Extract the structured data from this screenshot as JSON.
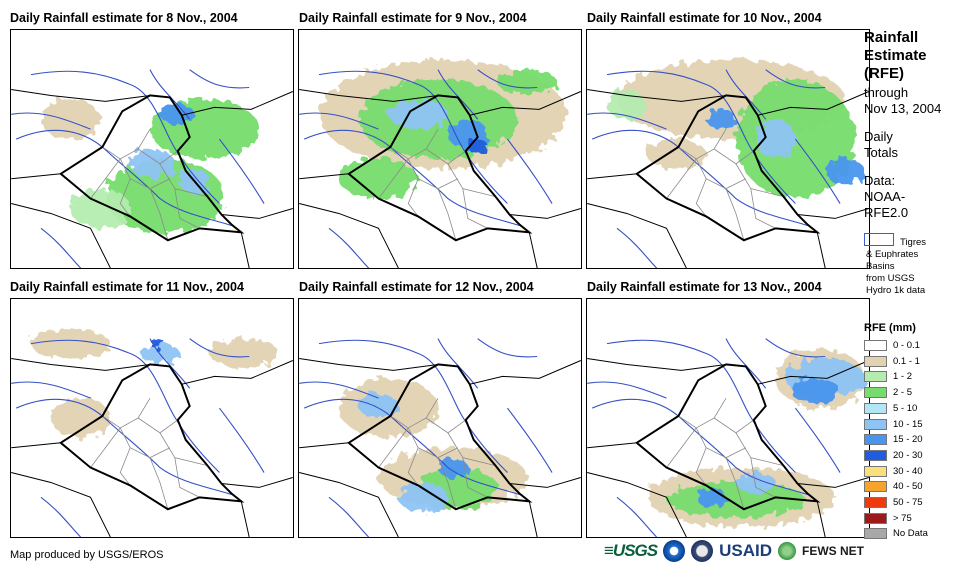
{
  "panels": [
    {
      "title": "Daily Rainfall estimate for 8 Nov., 2004"
    },
    {
      "title": "Daily Rainfall estimate for 9 Nov., 2004"
    },
    {
      "title": "Daily Rainfall estimate for 10 Nov., 2004"
    },
    {
      "title": "Daily Rainfall estimate for 11 Nov., 2004"
    },
    {
      "title": "Daily Rainfall estimate for 12 Nov., 2004"
    },
    {
      "title": "Daily Rainfall estimate for 13 Nov., 2004"
    }
  ],
  "sidebar": {
    "title_line1": "Rainfall",
    "title_line2": "Estimate",
    "title_line3": "(RFE)",
    "through": "through",
    "date": "Nov 13, 2004",
    "daily": "Daily",
    "totals": "Totals",
    "data_label": "Data:",
    "data_src1": "NOAA-",
    "data_src2": "RFE2.0",
    "basin_line1": "Tigres",
    "basin_line2": "& Euphrates",
    "basin_line3": "Basins",
    "basin_line4": "from USGS",
    "basin_line5": "Hydro 1k data"
  },
  "legend": {
    "title": "RFE (mm)",
    "items": [
      {
        "label": "0 - 0.1",
        "color": "#ffffff"
      },
      {
        "label": "0.1 - 1",
        "color": "#e3d2b2"
      },
      {
        "label": "1 - 2",
        "color": "#b4ecb0"
      },
      {
        "label": "2 - 5",
        "color": "#76dc6e"
      },
      {
        "label": "5 - 10",
        "color": "#b2e6f4"
      },
      {
        "label": "10 - 15",
        "color": "#8ec4f4"
      },
      {
        "label": "15 - 20",
        "color": "#4a96ee"
      },
      {
        "label": "20 - 30",
        "color": "#1e5ce0"
      },
      {
        "label": "30 - 40",
        "color": "#f8e07c"
      },
      {
        "label": "40 - 50",
        "color": "#f6a42c"
      },
      {
        "label": "50 - 75",
        "color": "#ee3a0c"
      },
      {
        "label": "> 75",
        "color": "#9c1a1a"
      },
      {
        "label": "No Data",
        "color": "#a8a8a8"
      }
    ]
  },
  "footer": {
    "credit": "Map produced by USGS/EROS",
    "logo_usgs": "≡USGS",
    "logo_usaid": "USAID",
    "logo_fews": "FEWS NET"
  }
}
